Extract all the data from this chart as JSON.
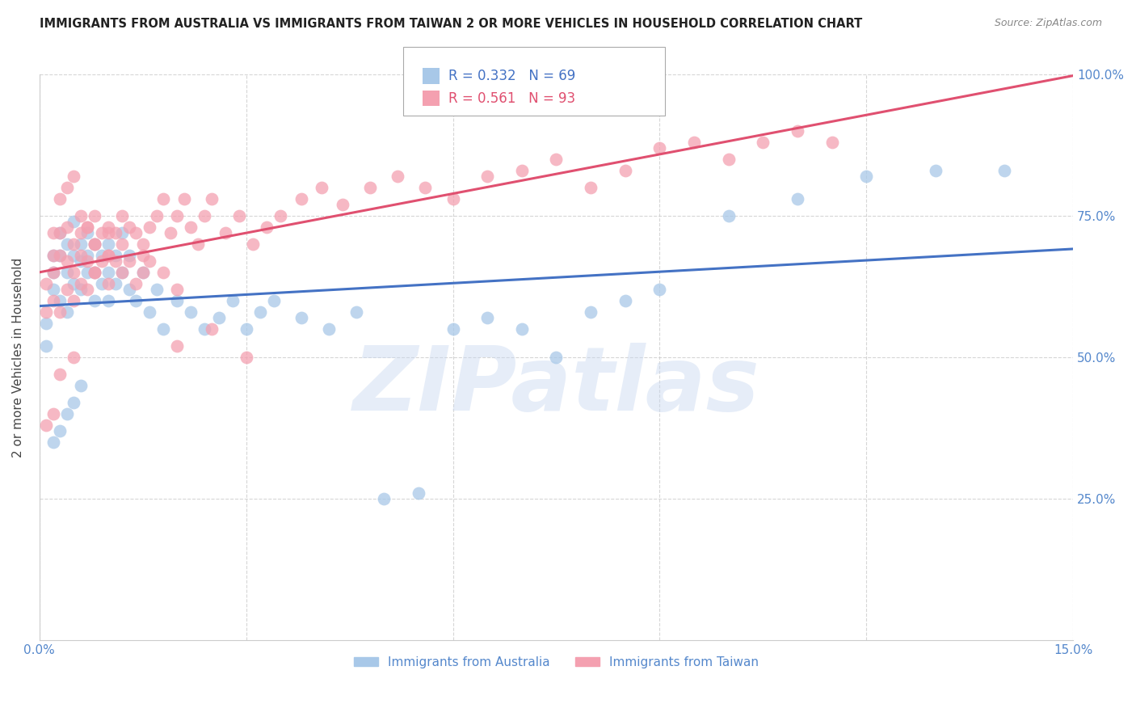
{
  "title": "IMMIGRANTS FROM AUSTRALIA VS IMMIGRANTS FROM TAIWAN 2 OR MORE VEHICLES IN HOUSEHOLD CORRELATION CHART",
  "source": "Source: ZipAtlas.com",
  "ylabel": "2 or more Vehicles in Household",
  "xmin": 0.0,
  "xmax": 0.15,
  "ymin": 0.0,
  "ymax": 1.0,
  "yticks": [
    0.25,
    0.5,
    0.75,
    1.0
  ],
  "ytick_labels": [
    "25.0%",
    "50.0%",
    "75.0%",
    "100.0%"
  ],
  "xticks": [
    0.0,
    0.03,
    0.06,
    0.09,
    0.12,
    0.15
  ],
  "xtick_labels": [
    "0.0%",
    "",
    "",
    "",
    "",
    "15.0%"
  ],
  "grid_color": "#cccccc",
  "watermark": "ZIPatlas",
  "watermark_color": "#c8d8f0",
  "australia": {
    "name": "Immigrants from Australia",
    "R": "0.332",
    "N": "69",
    "color": "#a8c8e8",
    "line_color": "#4472c4",
    "x": [
      0.001,
      0.001,
      0.002,
      0.002,
      0.002,
      0.003,
      0.003,
      0.003,
      0.004,
      0.004,
      0.004,
      0.005,
      0.005,
      0.005,
      0.006,
      0.006,
      0.006,
      0.007,
      0.007,
      0.007,
      0.008,
      0.008,
      0.008,
      0.009,
      0.009,
      0.01,
      0.01,
      0.01,
      0.011,
      0.011,
      0.012,
      0.012,
      0.013,
      0.013,
      0.014,
      0.015,
      0.016,
      0.017,
      0.018,
      0.02,
      0.022,
      0.024,
      0.026,
      0.028,
      0.03,
      0.032,
      0.034,
      0.038,
      0.042,
      0.046,
      0.05,
      0.055,
      0.06,
      0.065,
      0.07,
      0.075,
      0.08,
      0.085,
      0.09,
      0.1,
      0.11,
      0.12,
      0.13,
      0.14,
      0.002,
      0.003,
      0.004,
      0.005,
      0.006
    ],
    "y": [
      0.56,
      0.52,
      0.65,
      0.68,
      0.62,
      0.72,
      0.68,
      0.6,
      0.7,
      0.65,
      0.58,
      0.74,
      0.68,
      0.63,
      0.7,
      0.67,
      0.62,
      0.72,
      0.65,
      0.68,
      0.7,
      0.65,
      0.6,
      0.68,
      0.63,
      0.7,
      0.65,
      0.6,
      0.68,
      0.63,
      0.72,
      0.65,
      0.68,
      0.62,
      0.6,
      0.65,
      0.58,
      0.62,
      0.55,
      0.6,
      0.58,
      0.55,
      0.57,
      0.6,
      0.55,
      0.58,
      0.6,
      0.57,
      0.55,
      0.58,
      0.25,
      0.26,
      0.55,
      0.57,
      0.55,
      0.5,
      0.58,
      0.6,
      0.62,
      0.75,
      0.78,
      0.82,
      0.83,
      0.83,
      0.35,
      0.37,
      0.4,
      0.42,
      0.45
    ]
  },
  "taiwan": {
    "name": "Immigrants from Taiwan",
    "R": "0.561",
    "N": "93",
    "color": "#f4a0b0",
    "line_color": "#e05070",
    "x": [
      0.001,
      0.001,
      0.002,
      0.002,
      0.002,
      0.003,
      0.003,
      0.003,
      0.004,
      0.004,
      0.004,
      0.005,
      0.005,
      0.005,
      0.006,
      0.006,
      0.006,
      0.007,
      0.007,
      0.007,
      0.008,
      0.008,
      0.008,
      0.009,
      0.009,
      0.01,
      0.01,
      0.01,
      0.011,
      0.011,
      0.012,
      0.012,
      0.013,
      0.013,
      0.014,
      0.015,
      0.015,
      0.016,
      0.017,
      0.018,
      0.019,
      0.02,
      0.021,
      0.022,
      0.023,
      0.024,
      0.025,
      0.027,
      0.029,
      0.031,
      0.033,
      0.035,
      0.038,
      0.041,
      0.044,
      0.048,
      0.052,
      0.056,
      0.06,
      0.065,
      0.07,
      0.075,
      0.08,
      0.085,
      0.09,
      0.095,
      0.1,
      0.105,
      0.11,
      0.115,
      0.003,
      0.004,
      0.005,
      0.006,
      0.007,
      0.008,
      0.01,
      0.012,
      0.014,
      0.002,
      0.016,
      0.018,
      0.02,
      0.003,
      0.005,
      0.008,
      0.01,
      0.015,
      0.02,
      0.025,
      0.03,
      0.002,
      0.001
    ],
    "y": [
      0.58,
      0.63,
      0.65,
      0.68,
      0.6,
      0.72,
      0.68,
      0.58,
      0.73,
      0.67,
      0.62,
      0.7,
      0.65,
      0.6,
      0.72,
      0.68,
      0.63,
      0.73,
      0.67,
      0.62,
      0.75,
      0.7,
      0.65,
      0.72,
      0.67,
      0.73,
      0.68,
      0.63,
      0.72,
      0.67,
      0.75,
      0.7,
      0.73,
      0.67,
      0.72,
      0.7,
      0.65,
      0.73,
      0.75,
      0.78,
      0.72,
      0.75,
      0.78,
      0.73,
      0.7,
      0.75,
      0.78,
      0.72,
      0.75,
      0.7,
      0.73,
      0.75,
      0.78,
      0.8,
      0.77,
      0.8,
      0.82,
      0.8,
      0.78,
      0.82,
      0.83,
      0.85,
      0.8,
      0.83,
      0.87,
      0.88,
      0.85,
      0.88,
      0.9,
      0.88,
      0.78,
      0.8,
      0.82,
      0.75,
      0.73,
      0.7,
      0.68,
      0.65,
      0.63,
      0.72,
      0.67,
      0.65,
      0.62,
      0.47,
      0.5,
      0.65,
      0.72,
      0.68,
      0.52,
      0.55,
      0.5,
      0.4,
      0.38
    ]
  },
  "title_color": "#222222",
  "axis_color": "#5588cc",
  "background_color": "#ffffff"
}
